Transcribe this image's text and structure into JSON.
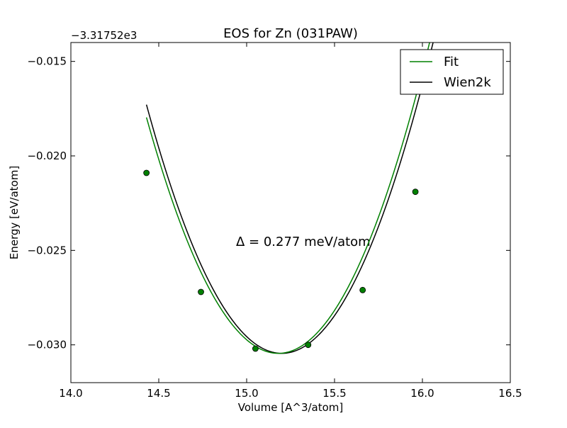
{
  "chart_data": {
    "type": "line",
    "title": "EOS for Zn (031PAW)",
    "xlabel": "Volume [A^3/atom]",
    "ylabel": "Energy [eV/atom]",
    "offset_label": "−3.31752e3",
    "annotation": "Δ = 0.277 meV/atom",
    "xlim": [
      14.0,
      16.5
    ],
    "ylim": [
      -0.032,
      -0.014
    ],
    "x_ticks": [
      14.0,
      14.5,
      15.0,
      15.5,
      16.0,
      16.5
    ],
    "x_tick_labels": [
      "14.0",
      "14.5",
      "15.0",
      "15.5",
      "16.0",
      "16.5"
    ],
    "y_ticks": [
      -0.015,
      -0.02,
      -0.025,
      -0.03
    ],
    "y_tick_labels": [
      "−0.015",
      "−0.020",
      "−0.025",
      "−0.030"
    ],
    "grid": false,
    "legend_position": "top-right",
    "series": [
      {
        "name": "Fit",
        "color": "#008000",
        "x_range": [
          14.43,
          16.25
        ],
        "model": "parabola",
        "v0": 15.18,
        "e0": -0.03045,
        "curvature": 0.0222
      },
      {
        "name": "Wien2k",
        "color": "#000000",
        "x_range": [
          14.43,
          16.25
        ],
        "model": "parabola",
        "v0": 15.2,
        "e0": -0.03045,
        "curvature": 0.0222
      }
    ],
    "points": {
      "color": "#008000",
      "x": [
        14.43,
        14.74,
        15.05,
        15.35,
        15.66,
        15.96
      ],
      "y": [
        -0.0209,
        -0.0272,
        -0.0302,
        -0.03,
        -0.0271,
        -0.0219
      ]
    }
  }
}
